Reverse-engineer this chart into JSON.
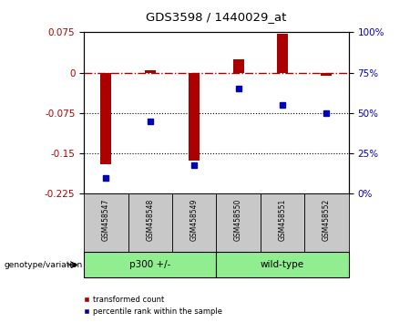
{
  "title": "GDS3598 / 1440029_at",
  "samples": [
    "GSM458547",
    "GSM458548",
    "GSM458549",
    "GSM458550",
    "GSM458551",
    "GSM458552"
  ],
  "red_values": [
    -0.17,
    0.005,
    -0.163,
    0.025,
    0.072,
    -0.005
  ],
  "blue_values_pct": [
    10,
    45,
    18,
    65,
    55,
    50
  ],
  "ylim_left": [
    -0.225,
    0.075
  ],
  "ylim_right": [
    0,
    100
  ],
  "yticks_left": [
    0.075,
    0,
    -0.075,
    -0.15,
    -0.225
  ],
  "yticks_right": [
    100,
    75,
    50,
    25,
    0
  ],
  "hlines": [
    -0.075,
    -0.15
  ],
  "group1_label": "p300 +/-",
  "group2_label": "wild-type",
  "group1_indices": [
    0,
    1,
    2
  ],
  "group2_indices": [
    3,
    4,
    5
  ],
  "legend_red": "transformed count",
  "legend_blue": "percentile rank within the sample",
  "genotype_label": "genotype/variation",
  "group1_color": "#90EE90",
  "group2_color": "#90EE90",
  "bar_color": "#AA0000",
  "dot_color": "#0000BB",
  "tick_area_bg": "#C8C8C8"
}
